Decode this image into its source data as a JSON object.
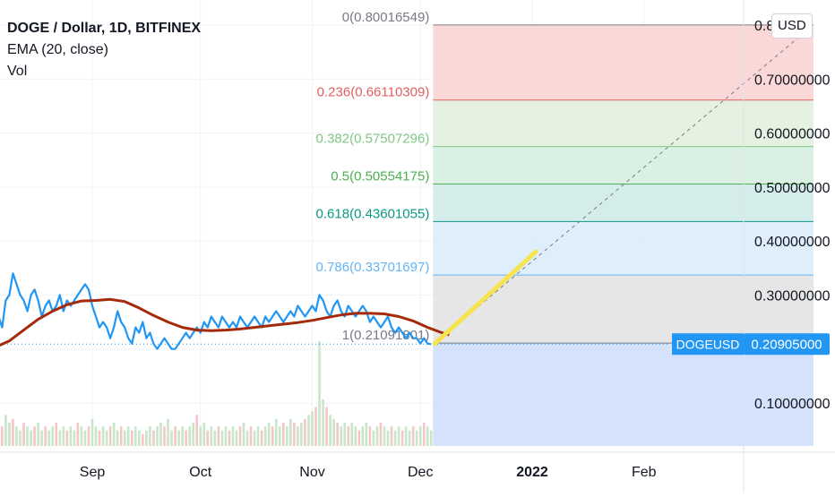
{
  "header": {
    "symbol_title": "DOGE / Dollar, 1D, BITFINEX",
    "indicator_ema": "EMA (20, close)",
    "indicator_vol": "Vol"
  },
  "currency_button": "USD",
  "price_badge": {
    "symbol": "DOGEUSD",
    "value": "0.20905000"
  },
  "colors": {
    "price_line": "#2196f3",
    "ema_line": "#a52a0a",
    "projection_line": "#f7e34d",
    "fib_0": "#787b86",
    "fib_0236": "#e06060",
    "fib_0382": "#81c784",
    "fib_05": "#4caf50",
    "fib_0618": "#089981",
    "fib_0786": "#64b5f6",
    "fib_1": "#787b86",
    "badge_bg": "#2196f3"
  },
  "chart_data": {
    "type": "line",
    "title": "DOGE / Dollar, 1D, BITFINEX",
    "ylim": [
      0.02,
      0.85
    ],
    "x_range_days": [
      0,
      238
    ],
    "x_tick_labels": [
      {
        "day": 31,
        "label": "Sep",
        "bold": false
      },
      {
        "day": 61,
        "label": "Oct",
        "bold": false
      },
      {
        "day": 92,
        "label": "Nov",
        "bold": false
      },
      {
        "day": 122,
        "label": "Dec",
        "bold": false
      },
      {
        "day": 153,
        "label": "2022",
        "bold": true
      },
      {
        "day": 184,
        "label": "Feb",
        "bold": false
      }
    ],
    "y_tick_labels": [
      {
        "value": 0.8,
        "label": "0.8"
      },
      {
        "value": 0.7,
        "label": "0.70000000"
      },
      {
        "value": 0.6,
        "label": "0.60000000"
      },
      {
        "value": 0.5,
        "label": "0.50000000"
      },
      {
        "value": 0.4,
        "label": "0.40000000"
      },
      {
        "value": 0.3,
        "label": "0.30000000"
      },
      {
        "value": 0.1,
        "label": "0.10000000"
      }
    ],
    "series": [
      {
        "name": "DOGEUSD",
        "points": [
          [
            0,
            0.21
          ],
          [
            1,
            0.23
          ],
          [
            2,
            0.26
          ],
          [
            3,
            0.24
          ],
          [
            4,
            0.25
          ],
          [
            5,
            0.26
          ],
          [
            6,
            0.24
          ],
          [
            7,
            0.29
          ],
          [
            8,
            0.3
          ],
          [
            9,
            0.34
          ],
          [
            10,
            0.32
          ],
          [
            11,
            0.3
          ],
          [
            12,
            0.29
          ],
          [
            13,
            0.27
          ],
          [
            14,
            0.3
          ],
          [
            15,
            0.31
          ],
          [
            16,
            0.29
          ],
          [
            17,
            0.26
          ],
          [
            18,
            0.28
          ],
          [
            19,
            0.29
          ],
          [
            20,
            0.27
          ],
          [
            21,
            0.28
          ],
          [
            22,
            0.3
          ],
          [
            23,
            0.27
          ],
          [
            24,
            0.29
          ],
          [
            25,
            0.28
          ],
          [
            26,
            0.29
          ],
          [
            27,
            0.3
          ],
          [
            28,
            0.31
          ],
          [
            29,
            0.32
          ],
          [
            30,
            0.31
          ],
          [
            31,
            0.28
          ],
          [
            32,
            0.26
          ],
          [
            33,
            0.24
          ],
          [
            34,
            0.25
          ],
          [
            35,
            0.24
          ],
          [
            36,
            0.22
          ],
          [
            37,
            0.24
          ],
          [
            38,
            0.27
          ],
          [
            39,
            0.25
          ],
          [
            40,
            0.24
          ],
          [
            41,
            0.22
          ],
          [
            42,
            0.21
          ],
          [
            43,
            0.24
          ],
          [
            44,
            0.23
          ],
          [
            45,
            0.25
          ],
          [
            46,
            0.22
          ],
          [
            47,
            0.23
          ],
          [
            48,
            0.21
          ],
          [
            49,
            0.2
          ],
          [
            50,
            0.21
          ],
          [
            51,
            0.22
          ],
          [
            52,
            0.21
          ],
          [
            53,
            0.2
          ],
          [
            54,
            0.2
          ],
          [
            55,
            0.21
          ],
          [
            56,
            0.22
          ],
          [
            57,
            0.23
          ],
          [
            58,
            0.22
          ],
          [
            59,
            0.23
          ],
          [
            60,
            0.24
          ],
          [
            61,
            0.23
          ],
          [
            62,
            0.25
          ],
          [
            63,
            0.24
          ],
          [
            64,
            0.26
          ],
          [
            65,
            0.25
          ],
          [
            66,
            0.24
          ],
          [
            67,
            0.26
          ],
          [
            68,
            0.25
          ],
          [
            69,
            0.24
          ],
          [
            70,
            0.25
          ],
          [
            71,
            0.24
          ],
          [
            72,
            0.26
          ],
          [
            73,
            0.25
          ],
          [
            74,
            0.24
          ],
          [
            75,
            0.25
          ],
          [
            76,
            0.26
          ],
          [
            77,
            0.25
          ],
          [
            78,
            0.24
          ],
          [
            79,
            0.26
          ],
          [
            80,
            0.25
          ],
          [
            81,
            0.26
          ],
          [
            82,
            0.27
          ],
          [
            83,
            0.26
          ],
          [
            84,
            0.25
          ],
          [
            85,
            0.26
          ],
          [
            86,
            0.27
          ],
          [
            87,
            0.26
          ],
          [
            88,
            0.28
          ],
          [
            89,
            0.27
          ],
          [
            90,
            0.26
          ],
          [
            91,
            0.27
          ],
          [
            92,
            0.28
          ],
          [
            93,
            0.27
          ],
          [
            94,
            0.3
          ],
          [
            95,
            0.29
          ],
          [
            96,
            0.27
          ],
          [
            97,
            0.26
          ],
          [
            98,
            0.28
          ],
          [
            99,
            0.29
          ],
          [
            100,
            0.27
          ],
          [
            101,
            0.26
          ],
          [
            102,
            0.28
          ],
          [
            103,
            0.27
          ],
          [
            104,
            0.26
          ],
          [
            105,
            0.27
          ],
          [
            106,
            0.28
          ],
          [
            107,
            0.27
          ],
          [
            108,
            0.25
          ],
          [
            109,
            0.26
          ],
          [
            110,
            0.25
          ],
          [
            111,
            0.24
          ],
          [
            112,
            0.25
          ],
          [
            113,
            0.26
          ],
          [
            114,
            0.24
          ],
          [
            115,
            0.23
          ],
          [
            116,
            0.24
          ],
          [
            117,
            0.23
          ],
          [
            118,
            0.22
          ],
          [
            119,
            0.23
          ],
          [
            120,
            0.22
          ],
          [
            121,
            0.22
          ],
          [
            122,
            0.21
          ],
          [
            123,
            0.22
          ],
          [
            124,
            0.21
          ],
          [
            125,
            0.209
          ]
        ]
      },
      {
        "name": "EMA (20, close)",
        "points": [
          [
            0,
            0.2
          ],
          [
            4,
            0.203
          ],
          [
            8,
            0.215
          ],
          [
            12,
            0.235
          ],
          [
            16,
            0.255
          ],
          [
            20,
            0.27
          ],
          [
            24,
            0.282
          ],
          [
            28,
            0.289
          ],
          [
            32,
            0.29
          ],
          [
            36,
            0.292
          ],
          [
            40,
            0.288
          ],
          [
            44,
            0.276
          ],
          [
            48,
            0.262
          ],
          [
            52,
            0.25
          ],
          [
            56,
            0.24
          ],
          [
            60,
            0.235
          ],
          [
            64,
            0.234
          ],
          [
            68,
            0.235
          ],
          [
            72,
            0.237
          ],
          [
            76,
            0.24
          ],
          [
            80,
            0.243
          ],
          [
            84,
            0.246
          ],
          [
            88,
            0.249
          ],
          [
            92,
            0.253
          ],
          [
            96,
            0.258
          ],
          [
            100,
            0.263
          ],
          [
            104,
            0.266
          ],
          [
            108,
            0.266
          ],
          [
            112,
            0.265
          ],
          [
            116,
            0.26
          ],
          [
            120,
            0.252
          ],
          [
            124,
            0.24
          ],
          [
            128,
            0.23
          ],
          [
            130,
            0.226
          ]
        ]
      }
    ],
    "volume": {
      "name": "Vol",
      "values": [
        0.06,
        0.05,
        0.07,
        0.05,
        0.04,
        0.06,
        0.05,
        0.08,
        0.06,
        0.07,
        0.05,
        0.04,
        0.06,
        0.05,
        0.04,
        0.05,
        0.06,
        0.04,
        0.05,
        0.04,
        0.05,
        0.06,
        0.04,
        0.05,
        0.04,
        0.05,
        0.04,
        0.06,
        0.05,
        0.04,
        0.05,
        0.07,
        0.05,
        0.04,
        0.05,
        0.04,
        0.05,
        0.06,
        0.04,
        0.05,
        0.04,
        0.05,
        0.04,
        0.05,
        0.04,
        0.03,
        0.04,
        0.05,
        0.04,
        0.05,
        0.06,
        0.05,
        0.07,
        0.04,
        0.05,
        0.04,
        0.05,
        0.04,
        0.05,
        0.06,
        0.08,
        0.05,
        0.06,
        0.04,
        0.05,
        0.04,
        0.05,
        0.04,
        0.05,
        0.04,
        0.05,
        0.04,
        0.05,
        0.06,
        0.04,
        0.05,
        0.04,
        0.05,
        0.04,
        0.05,
        0.06,
        0.05,
        0.07,
        0.05,
        0.06,
        0.05,
        0.07,
        0.06,
        0.05,
        0.06,
        0.07,
        0.08,
        0.09,
        0.1,
        0.27,
        0.12,
        0.1,
        0.08,
        0.07,
        0.06,
        0.05,
        0.06,
        0.05,
        0.06,
        0.05,
        0.04,
        0.05,
        0.06,
        0.05,
        0.04,
        0.05,
        0.06,
        0.05,
        0.04,
        0.05,
        0.04,
        0.05,
        0.04,
        0.05,
        0.04,
        0.05,
        0.04,
        0.05,
        0.06,
        0.05,
        0.04
      ]
    },
    "fibonacci": {
      "start_day": 126,
      "end_day": 231,
      "levels": [
        {
          "ratio": "0",
          "price": 0.80016549,
          "label": "0(0.80016549)",
          "color_key": "fib_0"
        },
        {
          "ratio": "0.236",
          "price": 0.66110309,
          "label": "0.236(0.66110309)",
          "color_key": "fib_0236"
        },
        {
          "ratio": "0.382",
          "price": 0.57507296,
          "label": "0.382(0.57507296)",
          "color_key": "fib_0382"
        },
        {
          "ratio": "0.5",
          "price": 0.50554175,
          "label": "0.5(0.50554175)",
          "color_key": "fib_05"
        },
        {
          "ratio": "0.618",
          "price": 0.43601055,
          "label": "0.618(0.43601055)",
          "color_key": "fib_0618"
        },
        {
          "ratio": "0.786",
          "price": 0.33701697,
          "label": "0.786(0.33701697)",
          "color_key": "fib_0786"
        },
        {
          "ratio": "1",
          "price": 0.21091801,
          "label": "1(0.21091801)",
          "color_key": "fib_1"
        }
      ],
      "zone_fills": [
        "#fbd4d4",
        "#e2f1df",
        "#d6eedf",
        "#d0ebe8",
        "#dcecfb",
        "#e3e3e3",
        "#d3e0fb"
      ]
    },
    "trend_line": {
      "from": [
        126,
        0.21091801
      ],
      "to": [
        231,
        0.80016549
      ]
    },
    "projection_arrow": {
      "from": [
        126,
        0.21
      ],
      "to": [
        154,
        0.38
      ]
    },
    "last_price": 0.20905
  }
}
